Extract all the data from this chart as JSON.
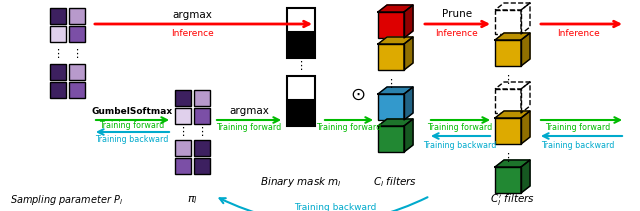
{
  "fig_width": 6.4,
  "fig_height": 2.11,
  "dpi": 100,
  "bg_color": "#ffffff",
  "purple_dark": "#3D2060",
  "purple_mid": "#7B4FA6",
  "purple_light": "#B89ACC",
  "purple_very_light": "#E0D0EC",
  "red_arrow": "#FF0000",
  "green_arrow": "#00BB00",
  "cyan_arrow": "#00AACC",
  "label_sampling": "Sampling parameter $P_l$",
  "label_pi": "$\\pi_l$",
  "label_binary": "Binary mask $m_l$",
  "label_cl": "$C_l$ filters",
  "label_cl_prime": "$C_l^{\\prime}$ filters",
  "label_argmax_top": "argmax",
  "label_inference_top": "Inference",
  "label_prune": "Prune",
  "label_argmax_bottom": "argmax",
  "label_gumbel": "GumbelSoftmax",
  "label_training_forward": "Training forward",
  "label_training_backward": "Training backward",
  "label_training_backward_bottom": "Training backward",
  "label_inference_right": "Inference"
}
